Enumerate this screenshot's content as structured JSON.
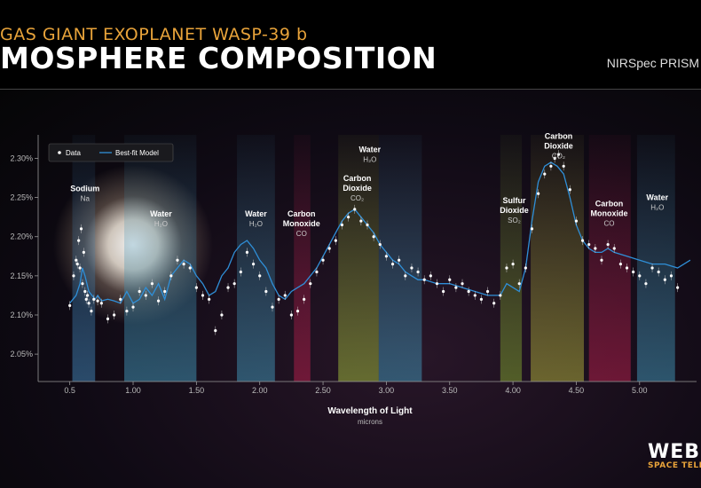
{
  "header": {
    "subtitle": "GAS GIANT EXOPLANET WASP-39 b",
    "title": "MOSPHERE COMPOSITION",
    "instrument": "NIRSpec PRISM"
  },
  "logo": {
    "name": "WEBB",
    "sub": "SPACE TELES"
  },
  "chart_data": {
    "type": "scatter",
    "xlabel": "Wavelength of Light",
    "xunit": "microns",
    "xlim": [
      0.25,
      5.45
    ],
    "ylim": [
      2.015,
      2.33
    ],
    "xticks": [
      "0.5",
      "1.00",
      "1.50",
      "2.00",
      "2.50",
      "3.00",
      "3.50",
      "4.00",
      "4.50",
      "5.00"
    ],
    "xtick_values": [
      0.5,
      1.0,
      1.5,
      2.0,
      2.5,
      3.0,
      3.5,
      4.0,
      4.5,
      5.0
    ],
    "yticks": [
      "2.05%",
      "2.10%",
      "2.15%",
      "2.20%",
      "2.25%",
      "2.30%"
    ],
    "ytick_values": [
      2.05,
      2.1,
      2.15,
      2.2,
      2.25,
      2.3
    ],
    "legend": {
      "placement": "top-left",
      "entries": [
        "Data",
        "Best-fit Model"
      ]
    },
    "bands": [
      {
        "x0": 0.52,
        "x1": 0.7,
        "color": "#3f7fb0"
      },
      {
        "x0": 0.93,
        "x1": 1.5,
        "color": "#3f8fb0"
      },
      {
        "x0": 1.82,
        "x1": 2.12,
        "color": "#3f8fb0"
      },
      {
        "x0": 2.27,
        "x1": 2.4,
        "color": "#b01e4a"
      },
      {
        "x0": 2.62,
        "x1": 2.94,
        "color": "#9ab33a"
      },
      {
        "x0": 2.94,
        "x1": 3.28,
        "color": "#3f8fb0"
      },
      {
        "x0": 3.9,
        "x1": 4.07,
        "color": "#7a9a2e"
      },
      {
        "x0": 4.14,
        "x1": 4.56,
        "color": "#a9a83a"
      },
      {
        "x0": 4.6,
        "x1": 4.93,
        "color": "#b01e4a"
      },
      {
        "x0": 4.98,
        "x1": 5.28,
        "color": "#3f8fb0"
      }
    ],
    "annotations": [
      {
        "x": 0.62,
        "y": 2.258,
        "lines": [
          "Sodium"
        ],
        "formula": "Na"
      },
      {
        "x": 1.22,
        "y": 2.226,
        "lines": [
          "Water"
        ],
        "formula": "H₂O"
      },
      {
        "x": 1.97,
        "y": 2.226,
        "lines": [
          "Water"
        ],
        "formula": "H₂O"
      },
      {
        "x": 2.33,
        "y": 2.226,
        "lines": [
          "Carbon",
          "Monoxide"
        ],
        "formula": "CO"
      },
      {
        "x": 2.87,
        "y": 2.308,
        "lines": [
          "Water"
        ],
        "formula": "H₂O"
      },
      {
        "x": 2.77,
        "y": 2.271,
        "lines": [
          "Carbon",
          "Dioxide"
        ],
        "formula": "CO₂"
      },
      {
        "x": 4.01,
        "y": 2.243,
        "lines": [
          "Sulfur",
          "Dioxide"
        ],
        "formula": "SO₂"
      },
      {
        "x": 4.36,
        "y": 2.325,
        "lines": [
          "Carbon",
          "Dioxide"
        ],
        "formula": "CO₂"
      },
      {
        "x": 4.76,
        "y": 2.239,
        "lines": [
          "Carbon",
          "Monoxide"
        ],
        "formula": "CO"
      },
      {
        "x": 5.14,
        "y": 2.247,
        "lines": [
          "Water"
        ],
        "formula": "H₂O"
      }
    ],
    "series": [
      {
        "name": "Best-fit Model",
        "x": [
          0.5,
          0.55,
          0.58,
          0.6,
          0.62,
          0.65,
          0.7,
          0.72,
          0.75,
          0.8,
          0.85,
          0.9,
          0.95,
          1.0,
          1.05,
          1.1,
          1.15,
          1.2,
          1.25,
          1.3,
          1.35,
          1.4,
          1.45,
          1.5,
          1.55,
          1.6,
          1.65,
          1.7,
          1.75,
          1.8,
          1.85,
          1.9,
          1.95,
          2.0,
          2.05,
          2.1,
          2.15,
          2.2,
          2.25,
          2.3,
          2.35,
          2.4,
          2.45,
          2.5,
          2.55,
          2.6,
          2.65,
          2.7,
          2.75,
          2.8,
          2.85,
          2.9,
          2.95,
          3.0,
          3.05,
          3.1,
          3.15,
          3.2,
          3.25,
          3.3,
          3.4,
          3.5,
          3.6,
          3.7,
          3.8,
          3.9,
          3.95,
          4.0,
          4.05,
          4.1,
          4.15,
          4.2,
          4.25,
          4.3,
          4.35,
          4.4,
          4.45,
          4.5,
          4.55,
          4.6,
          4.65,
          4.7,
          4.75,
          4.8,
          4.9,
          5.0,
          5.1,
          5.2,
          5.3,
          5.4
        ],
        "y": [
          2.115,
          2.125,
          2.14,
          2.16,
          2.15,
          2.13,
          2.12,
          2.125,
          2.118,
          2.12,
          2.118,
          2.115,
          2.13,
          2.115,
          2.12,
          2.135,
          2.125,
          2.14,
          2.12,
          2.15,
          2.16,
          2.17,
          2.165,
          2.15,
          2.14,
          2.125,
          2.13,
          2.15,
          2.16,
          2.18,
          2.19,
          2.195,
          2.185,
          2.17,
          2.16,
          2.14,
          2.125,
          2.12,
          2.13,
          2.135,
          2.14,
          2.15,
          2.16,
          2.175,
          2.19,
          2.205,
          2.22,
          2.23,
          2.235,
          2.225,
          2.215,
          2.205,
          2.19,
          2.18,
          2.17,
          2.165,
          2.155,
          2.15,
          2.145,
          2.145,
          2.14,
          2.14,
          2.135,
          2.13,
          2.125,
          2.125,
          2.14,
          2.135,
          2.13,
          2.16,
          2.22,
          2.27,
          2.29,
          2.295,
          2.29,
          2.28,
          2.25,
          2.215,
          2.195,
          2.185,
          2.18,
          2.18,
          2.185,
          2.18,
          2.175,
          2.17,
          2.165,
          2.165,
          2.16,
          2.17
        ]
      },
      {
        "name": "Data",
        "x": [
          0.5,
          0.53,
          0.55,
          0.56,
          0.57,
          0.58,
          0.59,
          0.6,
          0.61,
          0.62,
          0.63,
          0.64,
          0.65,
          0.67,
          0.69,
          0.72,
          0.75,
          0.8,
          0.85,
          0.9,
          0.95,
          1.0,
          1.05,
          1.1,
          1.15,
          1.2,
          1.25,
          1.3,
          1.35,
          1.4,
          1.45,
          1.5,
          1.55,
          1.6,
          1.65,
          1.7,
          1.75,
          1.8,
          1.85,
          1.9,
          1.95,
          2.0,
          2.05,
          2.1,
          2.15,
          2.2,
          2.25,
          2.3,
          2.35,
          2.4,
          2.45,
          2.5,
          2.55,
          2.6,
          2.65,
          2.7,
          2.75,
          2.8,
          2.85,
          2.9,
          2.95,
          3.0,
          3.05,
          3.1,
          3.15,
          3.2,
          3.25,
          3.3,
          3.35,
          3.4,
          3.45,
          3.5,
          3.55,
          3.6,
          3.65,
          3.7,
          3.75,
          3.8,
          3.85,
          3.9,
          3.95,
          4.0,
          4.05,
          4.1,
          4.15,
          4.2,
          4.25,
          4.3,
          4.33,
          4.36,
          4.4,
          4.45,
          4.5,
          4.55,
          4.6,
          4.65,
          4.7,
          4.75,
          4.8,
          4.85,
          4.9,
          4.95,
          5.0,
          5.05,
          5.1,
          5.15,
          5.2,
          5.25,
          5.3
        ],
        "y": [
          2.112,
          2.15,
          2.17,
          2.165,
          2.195,
          2.16,
          2.21,
          2.14,
          2.18,
          2.13,
          2.12,
          2.125,
          2.115,
          2.105,
          2.12,
          2.118,
          2.115,
          2.095,
          2.1,
          2.12,
          2.105,
          2.11,
          2.13,
          2.125,
          2.14,
          2.118,
          2.13,
          2.15,
          2.17,
          2.165,
          2.16,
          2.135,
          2.125,
          2.12,
          2.08,
          2.1,
          2.135,
          2.14,
          2.155,
          2.18,
          2.165,
          2.15,
          2.13,
          2.11,
          2.12,
          2.125,
          2.1,
          2.105,
          2.12,
          2.14,
          2.155,
          2.17,
          2.185,
          2.195,
          2.215,
          2.225,
          2.235,
          2.22,
          2.215,
          2.2,
          2.19,
          2.175,
          2.165,
          2.17,
          2.15,
          2.16,
          2.155,
          2.145,
          2.15,
          2.14,
          2.13,
          2.145,
          2.135,
          2.14,
          2.13,
          2.125,
          2.12,
          2.13,
          2.115,
          2.125,
          2.16,
          2.165,
          2.14,
          2.16,
          2.21,
          2.255,
          2.28,
          2.29,
          2.3,
          2.305,
          2.29,
          2.26,
          2.22,
          2.195,
          2.19,
          2.185,
          2.17,
          2.19,
          2.185,
          2.165,
          2.16,
          2.155,
          2.15,
          2.14,
          2.16,
          2.155,
          2.145,
          2.15,
          2.135
        ]
      }
    ]
  }
}
